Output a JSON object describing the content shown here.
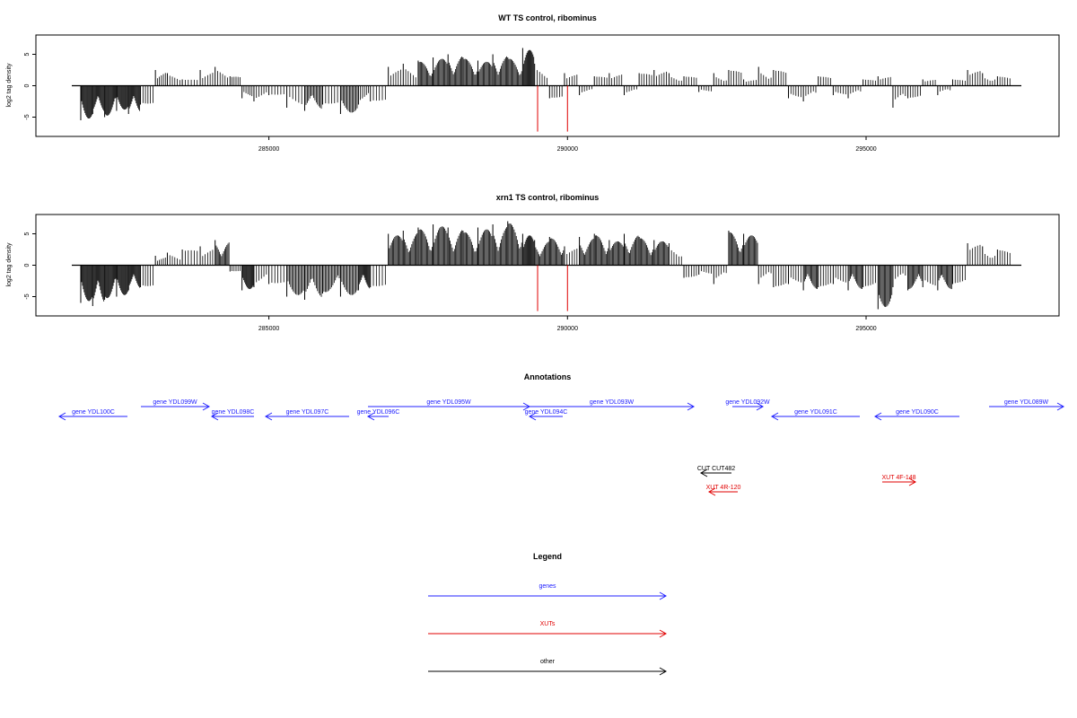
{
  "chart_data": [
    {
      "type": "bar",
      "title": "WT TS control, ribominus",
      "ylabel": "log2 tag density",
      "xlim": [
        281700,
        297600
      ],
      "ylim": [
        -7.5,
        7.5
      ],
      "yticks": [
        -5,
        0,
        5
      ],
      "xticks": [
        285000,
        290000,
        295000
      ],
      "grid": false,
      "series": [
        {
          "name": "",
          "color": "#000000",
          "x": [
            281850,
            282050,
            282250,
            282450,
            282650,
            282850,
            283100,
            283300,
            283550,
            283850,
            284100,
            284350,
            284550,
            284750,
            285000,
            285300,
            285600,
            285900,
            286200,
            286500,
            286700,
            287000,
            287250,
            287500,
            287750,
            288000,
            288250,
            288500,
            288750,
            289000,
            289250,
            289450,
            289700,
            289950,
            290200,
            290450,
            290700,
            290950,
            291200,
            291450,
            291700,
            291950,
            292200,
            292450,
            292700,
            292950,
            293200,
            293450,
            293700,
            293950,
            294200,
            294450,
            294700,
            294950,
            295200,
            295450,
            295700,
            295950,
            296200,
            296450,
            296700,
            296950,
            297200
          ],
          "values": [
            -5.5,
            -4.5,
            -5,
            -4,
            -4.5,
            -3,
            2.5,
            2,
            1,
            2.5,
            3,
            1.5,
            -2,
            -2.5,
            -1.5,
            -3.5,
            -4,
            -3,
            -4.5,
            -3,
            -2.5,
            3,
            3.5,
            4,
            4.5,
            5,
            4.5,
            4,
            5,
            4.5,
            6,
            3.5,
            -2,
            2,
            -1.5,
            1.5,
            2,
            -1.5,
            2,
            2.5,
            2,
            1.5,
            -1,
            2,
            2.5,
            1,
            3,
            2.5,
            -2,
            -2.5,
            1.5,
            -1.5,
            -2,
            1,
            1.5,
            -3.5,
            -2,
            1,
            -1.5,
            1,
            2.5,
            2,
            1.5
          ]
        },
        {
          "name": "",
          "color": "#e00000",
          "x": [
            289500,
            290000
          ],
          "values": [
            -7.3,
            -7.3
          ]
        }
      ]
    },
    {
      "type": "bar",
      "title": "xrn1 TS control, ribominus",
      "ylabel": "log2 tag density",
      "xlim": [
        281700,
        297600
      ],
      "ylim": [
        -7.5,
        7.5
      ],
      "yticks": [
        -5,
        0,
        5
      ],
      "xticks": [
        285000,
        290000,
        295000
      ],
      "grid": false,
      "series": [
        {
          "name": "",
          "color": "#000000",
          "x": [
            281850,
            282050,
            282250,
            282450,
            282650,
            282850,
            283100,
            283300,
            283550,
            283850,
            284100,
            284350,
            284550,
            284750,
            285000,
            285300,
            285600,
            285900,
            286200,
            286500,
            286700,
            287000,
            287250,
            287500,
            287750,
            288000,
            288250,
            288500,
            288750,
            289000,
            289250,
            289450,
            289700,
            289950,
            290200,
            290450,
            290700,
            290950,
            291200,
            291450,
            291700,
            291950,
            292200,
            292450,
            292700,
            292950,
            293200,
            293450,
            293700,
            293950,
            294200,
            294450,
            294700,
            294950,
            295200,
            295450,
            295700,
            295950,
            296200,
            296450,
            296700,
            296950,
            297200
          ],
          "values": [
            -6,
            -6.5,
            -5.5,
            -5,
            -4,
            -3.5,
            1.5,
            2,
            2.5,
            3,
            4,
            -1,
            -4,
            -3.5,
            -3,
            -5,
            -5.5,
            -4.5,
            -5,
            -4,
            -3.5,
            5,
            5.5,
            6,
            6.5,
            6,
            5.5,
            6,
            6.5,
            7,
            5,
            4,
            4.5,
            3,
            4.5,
            5,
            4,
            5,
            4.5,
            4,
            3.5,
            -2,
            -1.5,
            -3,
            5.5,
            5,
            -3,
            -3.5,
            -3,
            -4,
            -3.5,
            -3,
            -4,
            -3.5,
            -7,
            -3.5,
            -4,
            -3.5,
            -4,
            -3,
            3.5,
            3,
            2.5
          ]
        },
        {
          "name": "",
          "color": "#e00000",
          "x": [
            289500,
            290000
          ],
          "values": [
            -7.3,
            -7.3
          ]
        }
      ]
    }
  ],
  "annotations": {
    "title": "Annotations",
    "genes": [
      {
        "label": "gene YDL100C",
        "dir": "left",
        "x1": 66,
        "x2": 142,
        "row": 1
      },
      {
        "label": "gene YDL099W",
        "dir": "right",
        "x1": 157,
        "x2": 233,
        "row": 0
      },
      {
        "label": "gene YDL098C",
        "dir": "left",
        "x1": 236,
        "x2": 283,
        "row": 1
      },
      {
        "label": "gene YDL097C",
        "dir": "left",
        "x1": 296,
        "x2": 389,
        "row": 1
      },
      {
        "label": "gene YDL096C",
        "dir": "left",
        "x1": 410,
        "x2": 433,
        "row": 1
      },
      {
        "label": "gene YDL095W",
        "dir": "right",
        "x1": 410,
        "x2": 590,
        "row": 0
      },
      {
        "label": "gene YDL094C",
        "dir": "left",
        "x1": 590,
        "x2": 627,
        "row": 1
      },
      {
        "label": "gene YDL093W",
        "dir": "right",
        "x1": 590,
        "x2": 773,
        "row": 0
      },
      {
        "label": "gene YDL092W",
        "dir": "right",
        "x1": 816,
        "x2": 850,
        "row": 0
      },
      {
        "label": "gene YDL091C",
        "dir": "left",
        "x1": 860,
        "x2": 958,
        "row": 1
      },
      {
        "label": "gene YDL090C",
        "dir": "left",
        "x1": 975,
        "x2": 1069,
        "row": 1
      },
      {
        "label": "gene YDL089W",
        "dir": "right",
        "x1": 1102,
        "x2": 1185,
        "row": 0
      }
    ],
    "other": [
      {
        "label": "CUT CUT482",
        "dir": "left",
        "x1": 781,
        "x2": 815,
        "y": 527,
        "color": "#000000"
      },
      {
        "label": "XUT 4R-120",
        "dir": "left",
        "x1": 790,
        "x2": 822,
        "y": 548,
        "color": "#e00000"
      },
      {
        "label": "XUT 4F-148",
        "dir": "right",
        "x1": 983,
        "x2": 1020,
        "y": 537,
        "color": "#e00000"
      }
    ]
  },
  "legend": {
    "title": "Legend",
    "items": [
      {
        "label": "genes",
        "color": "#2020ff"
      },
      {
        "label": "XUTs",
        "color": "#e00000"
      },
      {
        "label": "other",
        "color": "#000000"
      }
    ]
  },
  "colors": {
    "gene": "#2020ff",
    "xut": "#e00000",
    "other": "#000000"
  }
}
